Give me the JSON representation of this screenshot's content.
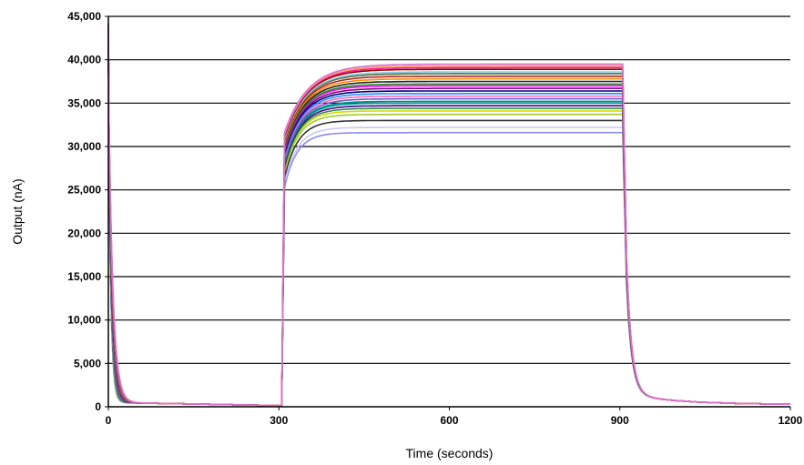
{
  "chart_data": {
    "type": "line",
    "title": "",
    "xlabel": "Time (seconds)",
    "ylabel": "Output (nA)",
    "xlim": [
      0,
      1200
    ],
    "ylim": [
      0,
      45000
    ],
    "xticks": [
      0,
      300,
      600,
      900,
      1200
    ],
    "xtick_labels": [
      "0",
      "300",
      "600",
      "900",
      "1200"
    ],
    "yticks": [
      0,
      5000,
      10000,
      15000,
      20000,
      25000,
      30000,
      35000,
      40000,
      45000
    ],
    "ytick_labels": [
      "0",
      "5,000",
      "10,000",
      "15,000",
      "20,000",
      "25,000",
      "30,000",
      "35,000",
      "40,000",
      "45,000"
    ],
    "grid": "horizontal",
    "legend": "none",
    "profile_x": [
      0,
      5,
      10,
      20,
      30,
      60,
      150,
      305,
      310,
      320,
      340,
      380,
      420,
      500,
      600,
      700,
      800,
      905,
      910,
      915,
      920,
      930,
      960,
      1000,
      1050,
      1100,
      1150,
      1200
    ],
    "series": [
      {
        "color": "#8b8bef",
        "plateau": 31600
      },
      {
        "color": "#c8c8f2",
        "plateau": 32200
      },
      {
        "color": "#333333",
        "plateau": 33000
      },
      {
        "color": "#9acd32",
        "plateau": 33700
      },
      {
        "color": "#d9d900",
        "plateau": 34100
      },
      {
        "color": "#2e8b57",
        "plateau": 34400
      },
      {
        "color": "#4b0082",
        "plateau": 34700
      },
      {
        "color": "#00a0a0",
        "plateau": 35000
      },
      {
        "color": "#008b8b",
        "plateau": 35200
      },
      {
        "color": "#6a5acd",
        "plateau": 35500
      },
      {
        "color": "#ff69b4",
        "plateau": 35800
      },
      {
        "color": "#1e90ff",
        "plateau": 36100
      },
      {
        "color": "#000080",
        "plateau": 36400
      },
      {
        "color": "#800080",
        "plateau": 36700
      },
      {
        "color": "#ff00ff",
        "plateau": 37000
      },
      {
        "color": "#228b22",
        "plateau": 37200
      },
      {
        "color": "#222222",
        "plateau": 37500
      },
      {
        "color": "#ff8c00",
        "plateau": 37800
      },
      {
        "color": "#b22222",
        "plateau": 38100
      },
      {
        "color": "#556b2f",
        "plateau": 38400
      },
      {
        "color": "#87ceeb",
        "plateau": 38600
      },
      {
        "color": "#8b0000",
        "plateau": 38900
      },
      {
        "color": "#ff1493",
        "plateau": 39100
      },
      {
        "color": "#f4a460",
        "plateau": 39300
      },
      {
        "color": "#da70d6",
        "plateau": 39500
      }
    ]
  }
}
